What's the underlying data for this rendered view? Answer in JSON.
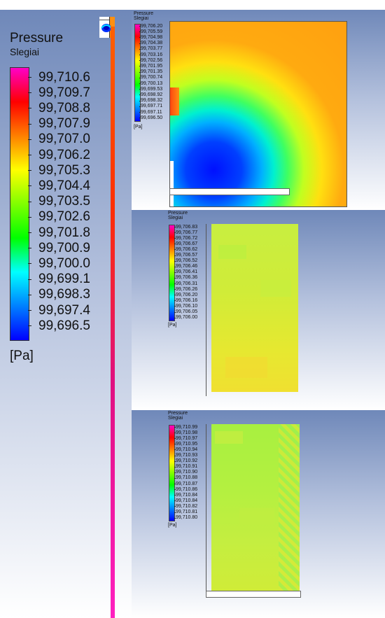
{
  "legend_common": {
    "title": "Pressure",
    "subtitle": "Slegiai",
    "unit": "[Pa]"
  },
  "left_legend": {
    "labels": [
      "99,710.6",
      "99,709.7",
      "99,708.8",
      "99,707.9",
      "99,707.0",
      "99,706.2",
      "99,705.3",
      "99,704.4",
      "99,703.5",
      "99,702.6",
      "99,701.8",
      "99,700.9",
      "99,700.0",
      "99,699.1",
      "99,698.3",
      "99,697.4",
      "99,696.5"
    ]
  },
  "panel_top": {
    "labels": [
      "99,706.20",
      "99,705.59",
      "99,704.98",
      "99,704.38",
      "99,703.77",
      "99,703.16",
      "99,702.56",
      "99,701.95",
      "99,701.35",
      "99,700.74",
      "99,700.13",
      "99,699.53",
      "99,698.92",
      "99,698.32",
      "99,697.71",
      "99,697.11",
      "99,696.50"
    ]
  },
  "panel_mid": {
    "labels": [
      "99,706.83",
      "99,706.77",
      "99,706.72",
      "99,706.67",
      "99,706.62",
      "99,706.57",
      "99,706.52",
      "99,706.46",
      "99,706.41",
      "99,706.36",
      "99,706.31",
      "99,706.26",
      "99,706.20",
      "99,706.16",
      "99,706.10",
      "99,706.05",
      "99,706.00"
    ]
  },
  "panel_bottom": {
    "labels": [
      "99,710.99",
      "99,710.98",
      "99,710.97",
      "99,710.95",
      "99,710.94",
      "99,710.93",
      "99,710.92",
      "99,710.91",
      "99,710.90",
      "99,710.88",
      "99,710.87",
      "99,710.86",
      "99,710.84",
      "99,710.84",
      "99,710.82",
      "99,710.81",
      "99,710.80"
    ]
  },
  "colors": {
    "bar_gradient": [
      "#ff00c8",
      "#ff0000",
      "#ff8000",
      "#ffff00",
      "#80ff00",
      "#00ff00",
      "#00ffff",
      "#0080ff",
      "#0000ff"
    ],
    "field_orange": "#ffaa10",
    "field_low": "#0020ff",
    "mid_field": "#d8e830",
    "bottom_field": "#b8f040"
  }
}
